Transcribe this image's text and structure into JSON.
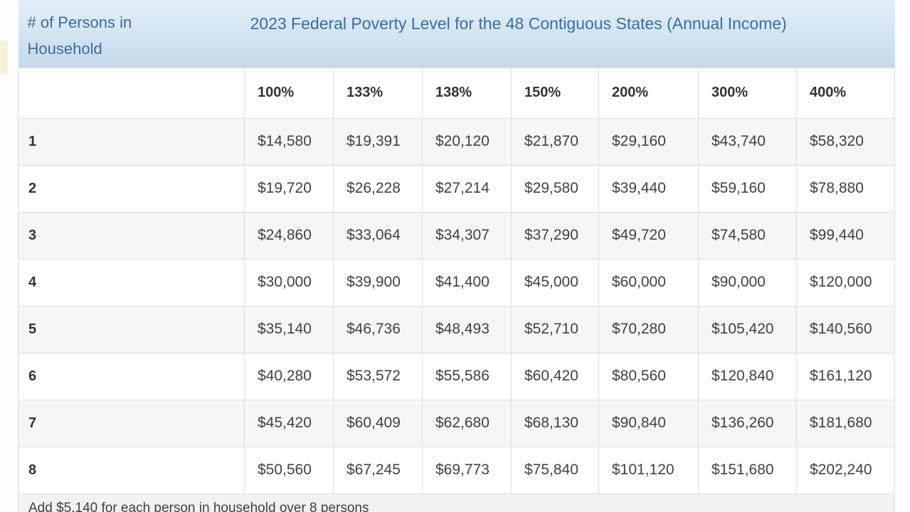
{
  "chart_data": {
    "type": "table",
    "title_row": {
      "persons_label": "# of Persons in Household",
      "fpl_title": "2023 Federal Poverty Level for the 48 Contiguous States (Annual Income)"
    },
    "percent_headers": [
      "100%",
      "133%",
      "138%",
      "150%",
      "200%",
      "300%",
      "400%"
    ],
    "columns": [
      "# of Persons in Household",
      "100%",
      "133%",
      "138%",
      "150%",
      "200%",
      "300%",
      "400%"
    ],
    "rows": [
      {
        "persons": "1",
        "values": [
          "$14,580",
          "$19,391",
          "$20,120",
          "$21,870",
          "$29,160",
          "$43,740",
          "$58,320"
        ]
      },
      {
        "persons": "2",
        "values": [
          "$19,720",
          "$26,228",
          "$27,214",
          "$29,580",
          "$39,440",
          "$59,160",
          "$78,880"
        ]
      },
      {
        "persons": "3",
        "values": [
          "$24,860",
          "$33,064",
          "$34,307",
          "$37,290",
          "$49,720",
          "$74,580",
          "$99,440"
        ]
      },
      {
        "persons": "4",
        "values": [
          "$30,000",
          "$39,900",
          "$41,400",
          "$45,000",
          "$60,000",
          "$90,000",
          "$120,000"
        ]
      },
      {
        "persons": "5",
        "values": [
          "$35,140",
          "$46,736",
          "$48,493",
          "$52,710",
          "$70,280",
          "$105,420",
          "$140,560"
        ]
      },
      {
        "persons": "6",
        "values": [
          "$40,280",
          "$53,572",
          "$55,586",
          "$60,420",
          "$80,560",
          "$120,840",
          "$161,120"
        ]
      },
      {
        "persons": "7",
        "values": [
          "$45,420",
          "$60,409",
          "$62,680",
          "$68,130",
          "$90,840",
          "$136,260",
          "$181,680"
        ]
      },
      {
        "persons": "8",
        "values": [
          "$50,560",
          "$67,245",
          "$69,773",
          "$75,840",
          "$101,120",
          "$151,680",
          "$202,240"
        ]
      }
    ],
    "footnote": "Add $5,140 for each person in household over 8 persons",
    "colors": {
      "header_bg_top": "#e3eff8",
      "header_bg_bottom": "#c6daec",
      "header_text": "#3b6e9e",
      "body_text": "#414141",
      "label_text": "#333333",
      "stripe": "#f6f6f6",
      "border": "#dcdcdc",
      "footer_bg": "#f2f2f2"
    }
  }
}
